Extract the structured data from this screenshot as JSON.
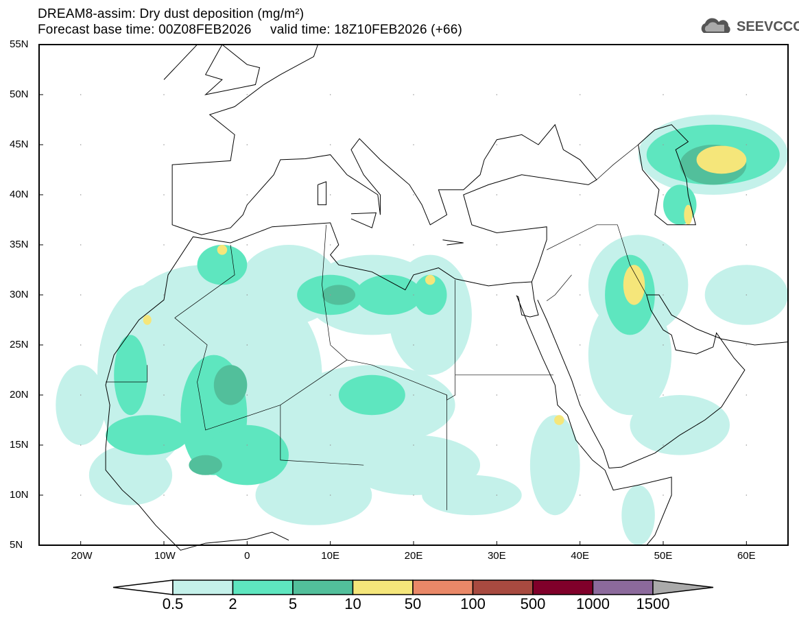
{
  "title": "DREAM8-assim: Dry dust deposition (mg/m²)",
  "subtitle": "Forecast base time: 00Z08FEB2026     valid time: 18Z10FEB2026 (+66)",
  "logo": "SEEVCCC",
  "lat_ticks": [
    "55N",
    "50N",
    "45N",
    "40N",
    "35N",
    "30N",
    "25N",
    "20N",
    "15N",
    "10N",
    "5N"
  ],
  "lon_ticks": [
    "20W",
    "10W",
    "0",
    "10E",
    "20E",
    "30E",
    "40E",
    "50E",
    "60E"
  ],
  "colorbar": {
    "labels": [
      "0.5",
      "2",
      "5",
      "10",
      "50",
      "100",
      "500",
      "1000",
      "1500"
    ],
    "colors": [
      "#c4f1ea",
      "#5ee6bf",
      "#52bf9b",
      "#f5e67a",
      "#ea8868",
      "#a84a40",
      "#80002a",
      "#8c6a9c"
    ],
    "under_color": "#ffffff",
    "over_color": "#aaaaaa"
  },
  "chart_data": {
    "type": "heatmap",
    "title": "DREAM8-assim: Dry dust deposition (mg/m²)",
    "units": "mg/m²",
    "lon_range": [
      -25,
      65
    ],
    "lat_range": [
      5,
      55
    ],
    "levels": [
      0.5,
      2,
      5,
      10,
      50,
      100,
      500,
      1000,
      1500
    ]
  }
}
